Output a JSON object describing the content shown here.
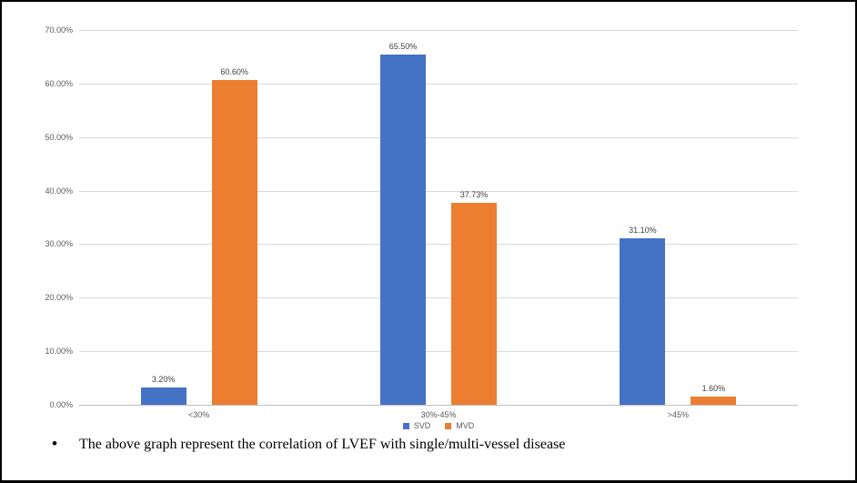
{
  "chart_data": {
    "type": "bar",
    "categories": [
      "<30%",
      "30%-45%",
      ">45%"
    ],
    "series": [
      {
        "name": "SVD",
        "color": "#4472c4",
        "values": [
          3.2,
          65.5,
          31.1
        ],
        "labels": [
          "3.20%",
          "65.50%",
          "31.10%"
        ]
      },
      {
        "name": "MVD",
        "color": "#ed7d31",
        "values": [
          60.6,
          37.73,
          1.6
        ],
        "labels": [
          "60.60%",
          "37.73%",
          "1.60%"
        ]
      }
    ],
    "ylim": [
      0,
      70
    ],
    "ytick_step": 10,
    "ytick_labels": [
      "0.00%",
      "10.00%",
      "20.00%",
      "30.00%",
      "40.00%",
      "50.00%",
      "60.00%",
      "70.00%"
    ],
    "grid": true,
    "legend_position": "bottom",
    "gridline_color": "#d9d9d9",
    "axis_label_color": "#595959",
    "data_label_color": "#404040"
  },
  "note": {
    "bullet": "•",
    "text": "The above graph represent the correlation of LVEF with single/multi-vessel disease"
  }
}
